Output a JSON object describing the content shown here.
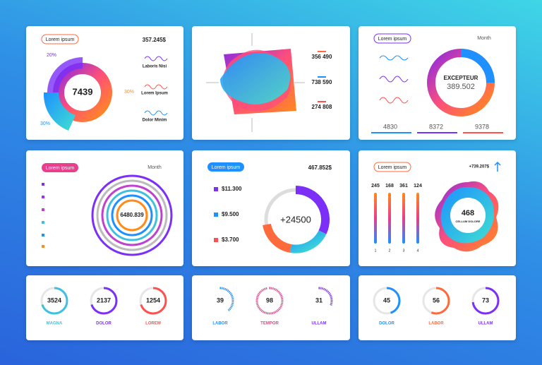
{
  "panels": {
    "revenue": {
      "badge": "Lorem ipsum",
      "total": "357.245$",
      "center": 7439,
      "percent_labels": [
        "20%",
        "30%",
        "30%"
      ],
      "legend": [
        "Laboris Nisi",
        "Lorem Ipsum",
        "Dolor Minim"
      ]
    },
    "blob": {
      "values": [
        "356 490",
        "738 590",
        "274 808"
      ]
    },
    "excepteur": {
      "badge": "Lorem ipsum",
      "dropdown": "Month",
      "center_title": "EXCEPTEUR",
      "center_value": "389.502",
      "footer": [
        4830,
        8372,
        9378
      ]
    },
    "rings": {
      "badge": "Lorem ipsum",
      "dropdown": "Month",
      "center": "6480.839"
    },
    "money": {
      "badge": "Lorem ipsum",
      "total": "467.852$",
      "items": [
        "$11.300",
        "$9.500",
        "$3.700"
      ],
      "center": "+24500"
    },
    "bars": {
      "badge": "Lorem ipsum",
      "total": "+739.207$",
      "bar_labels": [
        245,
        168,
        361,
        124
      ],
      "x_labels": [
        1,
        2,
        3,
        4
      ],
      "center": 468,
      "caption": "CELLUM DOLORE"
    },
    "gauges_a": [
      {
        "value": 3524,
        "label": "MAGNA"
      },
      {
        "value": 2137,
        "label": "DOLOR"
      },
      {
        "value": 1254,
        "label": "LOREM"
      }
    ],
    "gauges_b": [
      {
        "value": 39,
        "label": "LABOR"
      },
      {
        "value": 98,
        "label": "TEMPOR"
      },
      {
        "value": 31,
        "label": "ULLAM"
      }
    ],
    "gauges_c": [
      {
        "value": 45,
        "label": "DOLOR"
      },
      {
        "value": 56,
        "label": "LABOR"
      },
      {
        "value": 73,
        "label": "ULLAM"
      }
    ]
  }
}
